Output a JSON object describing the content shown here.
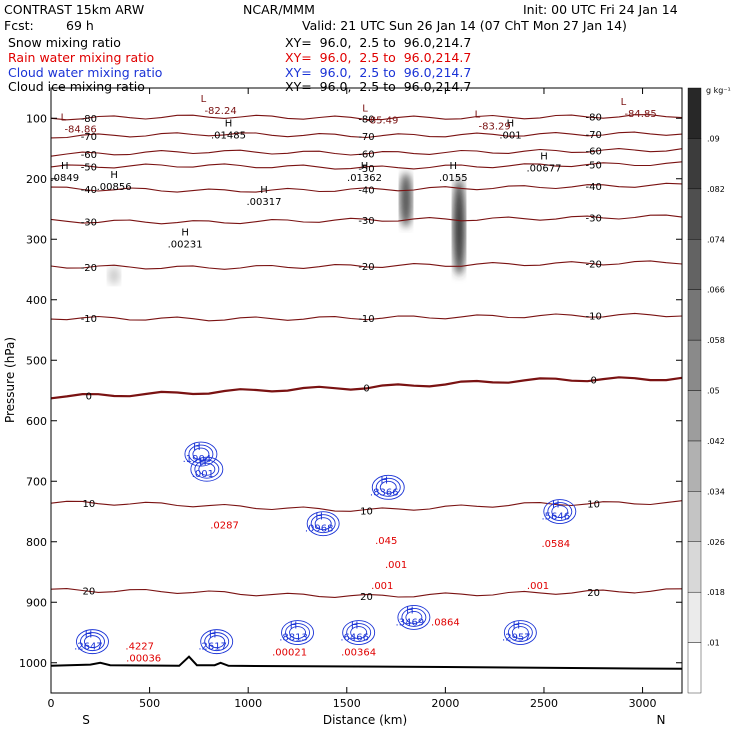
{
  "header": {
    "model": "CONTRAST 15km ARW",
    "center": "NCAR/MMM",
    "init": "Init: 00 UTC Fri 24 Jan 14",
    "fcst_label": "Fcst:",
    "fcst_value": "69 h",
    "valid": "Valid: 21 UTC Sun 26 Jan 14 (07 ChT Mon 27 Jan 14)"
  },
  "fields": [
    {
      "name": "Snow mixing ratio",
      "xy": "XY=  96.0,  2.5 to  96.0,214.7",
      "color": "#000000"
    },
    {
      "name": "Rain water mixing ratio",
      "xy": "XY=  96.0,  2.5 to  96.0,214.7",
      "color": "#e00000"
    },
    {
      "name": "Cloud water mixing ratio",
      "xy": "XY=  96.0,  2.5 to  96.0,214.7",
      "color": "#1a33d6"
    },
    {
      "name": "Cloud ice mixing ratio",
      "xy": "XY=  96.0,  2.5 to  96.0,214.7",
      "color": "#000000"
    }
  ],
  "colorbar": {
    "unit": "g kg⁻¹",
    "ticks": [
      ".01",
      ".018",
      ".026",
      ".034",
      ".042",
      ".05",
      ".058",
      ".066",
      ".074",
      ".082",
      ".09"
    ]
  },
  "chart_data": {
    "type": "heatmap",
    "title": "",
    "xlabel": "Distance (km)",
    "ylabel": "Pressure (hPa)",
    "xlim": [
      0,
      3200
    ],
    "ylim": [
      1050,
      50
    ],
    "x_ticks": [
      "0",
      "500",
      "1000",
      "1500",
      "2000",
      "2500",
      "3000"
    ],
    "y_ticks": [
      "100",
      "200",
      "300",
      "400",
      "500",
      "600",
      "700",
      "800",
      "900",
      "1000"
    ],
    "x_end_labels": {
      "left": "S",
      "right": "N"
    },
    "temperature_contours": [
      {
        "label": "-80",
        "points": [
          [
            0,
            100
          ],
          [
            800,
            97
          ],
          [
            1600,
            100
          ],
          [
            2400,
            98
          ],
          [
            3200,
            96
          ]
        ]
      },
      {
        "label": "-70",
        "points": [
          [
            0,
            130
          ],
          [
            800,
            126
          ],
          [
            1600,
            129
          ],
          [
            2400,
            127
          ],
          [
            3200,
            125
          ]
        ]
      },
      {
        "label": "-60",
        "points": [
          [
            0,
            160
          ],
          [
            800,
            155
          ],
          [
            1600,
            158
          ],
          [
            2400,
            155
          ],
          [
            3200,
            152
          ]
        ]
      },
      {
        "label": "-50",
        "points": [
          [
            0,
            180
          ],
          [
            800,
            178
          ],
          [
            1600,
            182
          ],
          [
            2400,
            178
          ],
          [
            3200,
            175
          ]
        ]
      },
      {
        "label": "-40",
        "points": [
          [
            0,
            216
          ],
          [
            800,
            220
          ],
          [
            1600,
            218
          ],
          [
            2400,
            214
          ],
          [
            3200,
            210
          ]
        ]
      },
      {
        "label": "-30",
        "points": [
          [
            0,
            270
          ],
          [
            800,
            272
          ],
          [
            1600,
            268
          ],
          [
            2400,
            266
          ],
          [
            3200,
            262
          ]
        ]
      },
      {
        "label": "-20",
        "points": [
          [
            0,
            345
          ],
          [
            800,
            347
          ],
          [
            1600,
            344
          ],
          [
            2400,
            341
          ],
          [
            3200,
            338
          ]
        ]
      },
      {
        "label": "-10",
        "points": [
          [
            0,
            430
          ],
          [
            800,
            432
          ],
          [
            1600,
            430
          ],
          [
            2400,
            427
          ],
          [
            3200,
            425
          ]
        ]
      },
      {
        "label": "0",
        "points": [
          [
            0,
            560
          ],
          [
            600,
            555
          ],
          [
            1200,
            548
          ],
          [
            1600,
            545
          ],
          [
            2400,
            533
          ],
          [
            3200,
            530
          ]
        ]
      },
      {
        "label": "10",
        "points": [
          [
            0,
            735
          ],
          [
            600,
            738
          ],
          [
            1200,
            745
          ],
          [
            1600,
            748
          ],
          [
            2400,
            738
          ],
          [
            3200,
            735
          ]
        ]
      },
      {
        "label": "20",
        "points": [
          [
            0,
            880
          ],
          [
            600,
            882
          ],
          [
            1200,
            888
          ],
          [
            1600,
            890
          ],
          [
            2400,
            885
          ],
          [
            3200,
            880
          ]
        ]
      }
    ],
    "snow_maxima_labels": [
      {
        "label": ".01485",
        "x": 900,
        "p": 130
      },
      {
        "label": ".0849",
        "x": 70,
        "p": 200
      },
      {
        "label": ".00856",
        "x": 320,
        "p": 215
      },
      {
        "label": ".00317",
        "x": 1080,
        "p": 240
      },
      {
        "label": ".00231",
        "x": 680,
        "p": 310
      },
      {
        "label": ".01362",
        "x": 1590,
        "p": 200
      },
      {
        "label": ".0155",
        "x": 2040,
        "p": 200
      },
      {
        "label": ".00677",
        "x": 2500,
        "p": 185
      },
      {
        "label": ".001",
        "x": 2330,
        "p": 130
      }
    ],
    "minimum_labels": [
      {
        "label": "-84.86",
        "x": 150,
        "p": 120
      },
      {
        "label": "-82.24",
        "x": 860,
        "p": 90
      },
      {
        "label": "-85.49",
        "x": 1680,
        "p": 105
      },
      {
        "label": "-83.29",
        "x": 2250,
        "p": 115
      },
      {
        "label": "-84.85",
        "x": 2990,
        "p": 95
      }
    ],
    "cloud_water_labels": [
      {
        "label": ".1904",
        "x": 740,
        "p": 665
      },
      {
        "label": ".001",
        "x": 770,
        "p": 690
      },
      {
        "label": ".0968",
        "x": 1360,
        "p": 780
      },
      {
        "label": ".8366",
        "x": 1690,
        "p": 720
      },
      {
        "label": ".5646",
        "x": 2560,
        "p": 760
      },
      {
        "label": ".2647",
        "x": 190,
        "p": 975
      },
      {
        "label": ".2617",
        "x": 820,
        "p": 975
      },
      {
        "label": ".8813",
        "x": 1230,
        "p": 960
      },
      {
        "label": ".6466",
        "x": 1540,
        "p": 960
      },
      {
        "label": ".3469",
        "x": 1820,
        "p": 935
      },
      {
        "label": ".2957",
        "x": 2360,
        "p": 960
      }
    ],
    "rain_labels": [
      {
        "label": ".0287",
        "x": 880,
        "p": 775
      },
      {
        "label": ".045",
        "x": 1700,
        "p": 800
      },
      {
        "label": ".001",
        "x": 1750,
        "p": 840
      },
      {
        "label": ".001",
        "x": 1680,
        "p": 875
      },
      {
        "label": ".0584",
        "x": 2560,
        "p": 805
      },
      {
        "label": ".001",
        "x": 2470,
        "p": 875
      },
      {
        "label": ".00036",
        "x": 470,
        "p": 995
      },
      {
        "label": ".00021",
        "x": 1210,
        "p": 985
      },
      {
        "label": ".00364",
        "x": 1560,
        "p": 985
      },
      {
        "label": ".0864",
        "x": 2000,
        "p": 935
      },
      {
        "label": ".4227",
        "x": 450,
        "p": 975
      }
    ],
    "snow_shading": [
      {
        "x": 1800,
        "p_top": 190,
        "p_bottom": 280,
        "intensity": 0.7
      },
      {
        "x": 2070,
        "p_top": 200,
        "p_bottom": 360,
        "intensity": 0.8
      },
      {
        "x": 320,
        "p_top": 345,
        "p_bottom": 375,
        "intensity": 0.2
      }
    ]
  }
}
